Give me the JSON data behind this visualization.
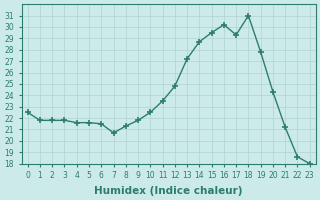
{
  "x": [
    0,
    1,
    2,
    3,
    4,
    5,
    6,
    7,
    8,
    9,
    10,
    11,
    12,
    13,
    14,
    15,
    16,
    17,
    18,
    19,
    20,
    21,
    22,
    23
  ],
  "y": [
    22.5,
    21.8,
    21.8,
    21.8,
    21.6,
    21.6,
    21.5,
    20.7,
    21.3,
    21.8,
    22.5,
    23.5,
    24.8,
    27.2,
    28.7,
    29.5,
    30.2,
    29.3,
    31.0,
    27.8,
    24.3,
    21.2,
    18.6,
    18.0
  ],
  "line_color": "#2d7d6e",
  "marker": "+",
  "marker_size": 5,
  "marker_lw": 1.2,
  "bg_color": "#cceae8",
  "grid_color": "#b0d4d0",
  "xlabel": "Humidex (Indice chaleur)",
  "ylim": [
    18,
    32
  ],
  "xlim": [
    -0.5,
    23.5
  ],
  "yticks": [
    18,
    19,
    20,
    21,
    22,
    23,
    24,
    25,
    26,
    27,
    28,
    29,
    30,
    31
  ],
  "xticks": [
    0,
    1,
    2,
    3,
    4,
    5,
    6,
    7,
    8,
    9,
    10,
    11,
    12,
    13,
    14,
    15,
    16,
    17,
    18,
    19,
    20,
    21,
    22,
    23
  ],
  "tick_fontsize": 5.5,
  "xlabel_fontsize": 7.5,
  "axis_color": "#2d7d6e"
}
